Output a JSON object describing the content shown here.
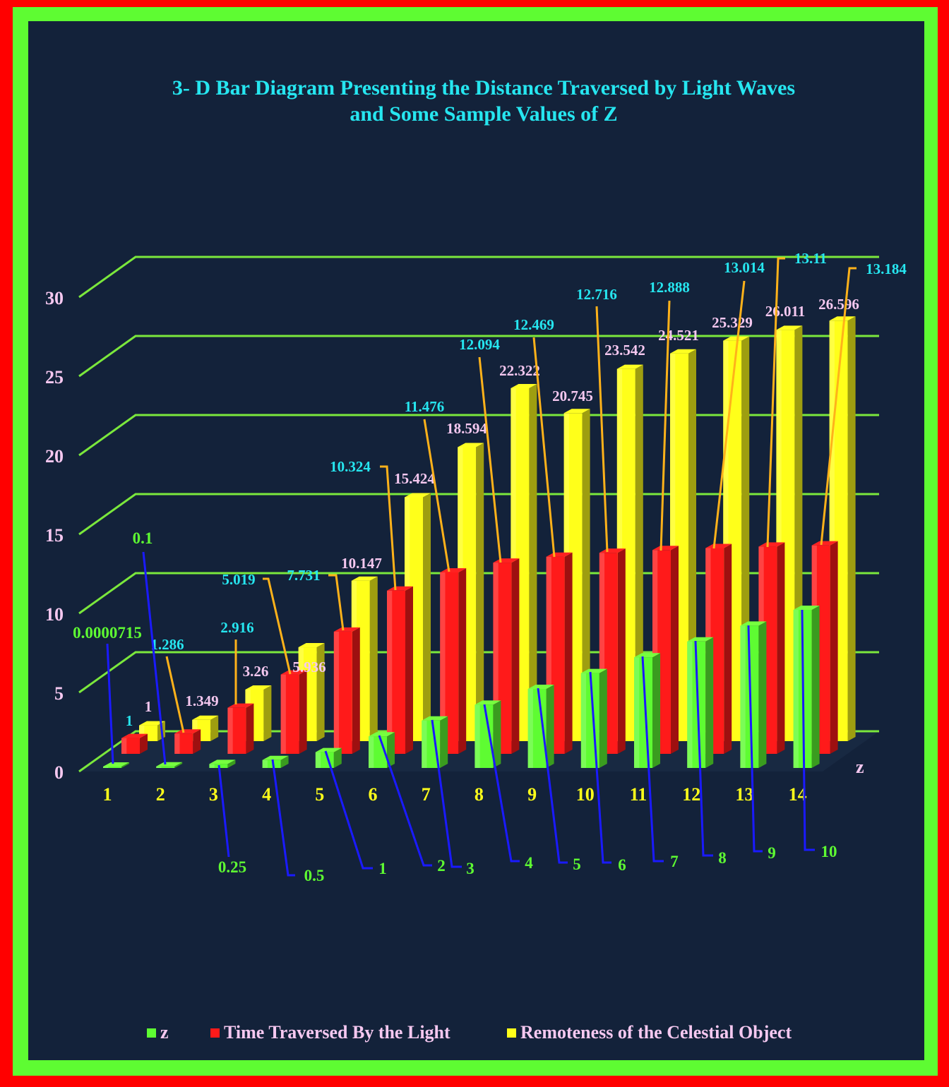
{
  "title_line1": "3- D Bar Diagram Presenting the  Distance Traversed by Light Waves",
  "title_line2": "and Some Sample Values of Z",
  "colors": {
    "background": "#13223a",
    "border_outer": "#ff0000",
    "border_inner": "#5efc32",
    "z": "#5efc32",
    "time": "#ff1a1a",
    "remoteness": "#ffff1a",
    "gridline": "#7be83c",
    "title": "#26e6f0"
  },
  "chart_data": {
    "type": "bar",
    "subtype": "3d-clustered",
    "title": "3- D Bar Diagram Presenting the  Distance Traversed by Light Waves and Some Sample Values of Z",
    "categories": [
      "1",
      "2",
      "3",
      "4",
      "5",
      "6",
      "7",
      "8",
      "9",
      "10",
      "11",
      "12",
      "13",
      "14"
    ],
    "series": [
      {
        "name": "z",
        "values": [
          7.15e-05,
          0.1,
          0.25,
          0.5,
          1,
          2,
          3,
          4,
          5,
          6,
          7,
          8,
          9,
          10
        ],
        "labels": [
          "0.0000715",
          "0.1",
          "0.25",
          "0.5",
          "1",
          "2",
          "3",
          "4",
          "5",
          "6",
          "7",
          "8",
          "9",
          "10"
        ]
      },
      {
        "name": "Time Traversed By the Light",
        "values": [
          1,
          1.286,
          2.916,
          5.019,
          7.731,
          10.324,
          11.476,
          12.094,
          12.469,
          12.716,
          12.888,
          13.014,
          13.11,
          13.184
        ],
        "labels": [
          "1",
          "1.286",
          "2.916",
          "5.019",
          "7.731",
          "10.324",
          "11.476",
          "12.094",
          "12.469",
          "12.716",
          "12.888",
          "13.014",
          "13.11",
          "13.184"
        ]
      },
      {
        "name": "Remoteness of the Celestial Object",
        "values": [
          1,
          1.349,
          3.26,
          5.936,
          10.147,
          15.424,
          18.594,
          22.322,
          20.745,
          23.542,
          24.521,
          25.329,
          26.011,
          26.596
        ],
        "labels": [
          "1",
          "1.349",
          "3.26",
          "5.936",
          "10.147",
          "15.424",
          "18.594",
          "22.322",
          "20.745",
          "23.542",
          "24.521",
          "25.329",
          "26.011",
          "26.596"
        ]
      }
    ],
    "yticks": [
      "0",
      "5",
      "10",
      "15",
      "20",
      "25",
      "30"
    ],
    "ylim": [
      0,
      30
    ],
    "depth_axis_label": "z",
    "grid": true,
    "legend_position": "bottom"
  }
}
